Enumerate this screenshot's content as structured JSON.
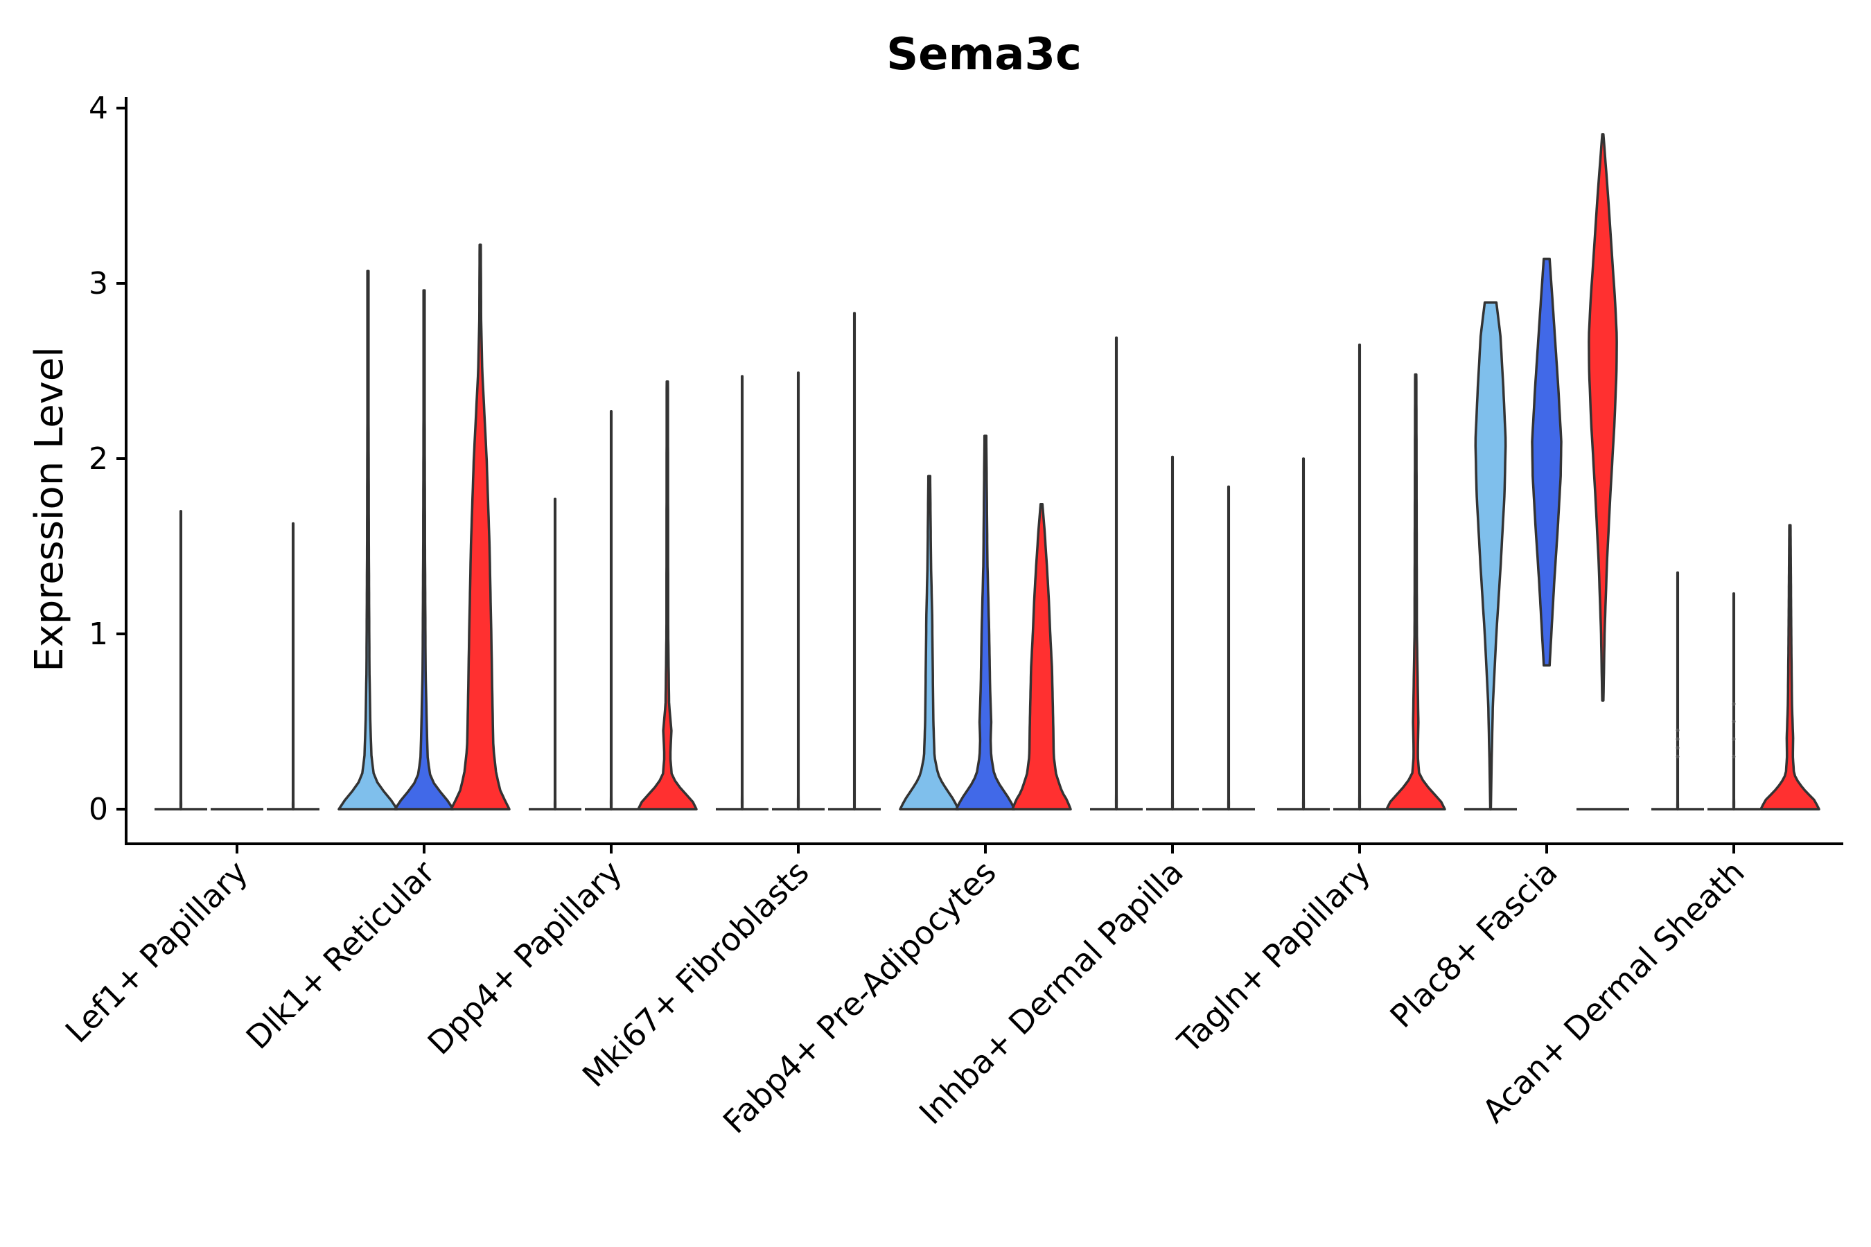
{
  "chart_data": {
    "type": "violin",
    "title": "Sema3c",
    "xlabel": "",
    "ylabel": "Expression Level",
    "ylim": [
      -0.2,
      4.05
    ],
    "yticks": [
      0,
      1,
      2,
      3,
      4
    ],
    "ytick_labels": [
      "0",
      "1",
      "2",
      "3",
      "4"
    ],
    "grid": false,
    "legend": "none",
    "groups": [
      "group1",
      "group2",
      "group3"
    ],
    "group_colors": [
      "#7FBFEC",
      "#4169E8",
      "#FF3030"
    ],
    "categories": [
      "Lef1+ Papillary",
      "Dlk1+ Reticular",
      "Dpp4+ Papillary",
      "Mki67+ Fibroblasts",
      "Fabp4+ Pre-Adipocytes",
      "Inhba+ Dermal Papilla",
      "Tagln+ Papillary",
      "Plac8+ Fascia",
      "Acan+ Dermal Sheath"
    ],
    "violins": [
      [
        {
          "group": 0,
          "max": 1.7,
          "profile": [
            [
              0,
              0.006
            ],
            [
              0.02,
              0.01
            ],
            [
              0.05,
              0.008
            ],
            [
              0.3,
              0.007
            ],
            [
              1.7,
              0.006
            ]
          ]
        },
        {
          "group": 1,
          "max": 0.0,
          "profile": [
            [
              0,
              0.0
            ]
          ]
        },
        {
          "group": 2,
          "max": 1.63,
          "profile": [
            [
              0,
              0.006
            ],
            [
              0.02,
              0.01
            ],
            [
              0.05,
              0.008
            ],
            [
              0.3,
              0.007
            ],
            [
              1.63,
              0.006
            ]
          ]
        }
      ],
      [
        {
          "group": 0,
          "max": 3.07,
          "profile": [
            [
              0,
              1.0
            ],
            [
              0.05,
              0.8
            ],
            [
              0.1,
              0.55
            ],
            [
              0.15,
              0.33
            ],
            [
              0.2,
              0.2
            ],
            [
              0.3,
              0.12
            ],
            [
              0.5,
              0.08
            ],
            [
              0.8,
              0.05
            ],
            [
              1.5,
              0.03
            ],
            [
              2.2,
              0.02
            ],
            [
              3.07,
              0.02
            ]
          ]
        },
        {
          "group": 1,
          "max": 2.96,
          "profile": [
            [
              0,
              1.0
            ],
            [
              0.05,
              0.8
            ],
            [
              0.1,
              0.55
            ],
            [
              0.15,
              0.33
            ],
            [
              0.2,
              0.2
            ],
            [
              0.3,
              0.12
            ],
            [
              0.5,
              0.09
            ],
            [
              0.8,
              0.05
            ],
            [
              1.5,
              0.03
            ],
            [
              2.2,
              0.02
            ],
            [
              2.96,
              0.02
            ]
          ]
        },
        {
          "group": 2,
          "max": 3.22,
          "profile": [
            [
              0,
              1.0
            ],
            [
              0.05,
              0.85
            ],
            [
              0.1,
              0.7
            ],
            [
              0.2,
              0.55
            ],
            [
              0.35,
              0.45
            ],
            [
              0.6,
              0.42
            ],
            [
              1.0,
              0.38
            ],
            [
              1.5,
              0.32
            ],
            [
              2.0,
              0.22
            ],
            [
              2.5,
              0.07
            ],
            [
              2.8,
              0.03
            ],
            [
              3.22,
              0.02
            ]
          ]
        }
      ],
      [
        {
          "group": 0,
          "max": 1.77,
          "profile": [
            [
              0,
              0.006
            ],
            [
              0.02,
              0.01
            ],
            [
              0.05,
              0.008
            ],
            [
              0.3,
              0.007
            ],
            [
              1.77,
              0.006
            ]
          ]
        },
        {
          "group": 1,
          "max": 2.27,
          "profile": [
            [
              0,
              0.006
            ],
            [
              0.02,
              0.01
            ],
            [
              0.05,
              0.008
            ],
            [
              0.3,
              0.007
            ],
            [
              2.27,
              0.006
            ]
          ]
        },
        {
          "group": 2,
          "max": 2.44,
          "profile": [
            [
              0,
              1.0
            ],
            [
              0.05,
              0.85
            ],
            [
              0.1,
              0.55
            ],
            [
              0.15,
              0.3
            ],
            [
              0.2,
              0.15
            ],
            [
              0.3,
              0.1
            ],
            [
              0.45,
              0.14
            ],
            [
              0.6,
              0.06
            ],
            [
              1.0,
              0.03
            ],
            [
              2.44,
              0.02
            ]
          ]
        }
      ],
      [
        {
          "group": 0,
          "max": 2.47,
          "profile": [
            [
              0,
              0.006
            ],
            [
              0.02,
              0.01
            ],
            [
              0.05,
              0.008
            ],
            [
              0.3,
              0.007
            ],
            [
              2.47,
              0.006
            ]
          ]
        },
        {
          "group": 1,
          "max": 2.49,
          "profile": [
            [
              0,
              0.006
            ],
            [
              0.02,
              0.01
            ],
            [
              0.05,
              0.008
            ],
            [
              0.3,
              0.007
            ],
            [
              2.49,
              0.006
            ]
          ]
        },
        {
          "group": 2,
          "max": 2.83,
          "profile": [
            [
              0,
              0.006
            ],
            [
              0.02,
              0.01
            ],
            [
              0.05,
              0.008
            ],
            [
              0.3,
              0.007
            ],
            [
              2.83,
              0.006
            ]
          ]
        }
      ],
      [
        {
          "group": 0,
          "max": 1.9,
          "profile": [
            [
              0,
              1.0
            ],
            [
              0.05,
              0.85
            ],
            [
              0.1,
              0.65
            ],
            [
              0.15,
              0.45
            ],
            [
              0.2,
              0.3
            ],
            [
              0.3,
              0.18
            ],
            [
              0.5,
              0.14
            ],
            [
              0.8,
              0.12
            ],
            [
              1.1,
              0.1
            ],
            [
              1.4,
              0.06
            ],
            [
              1.9,
              0.03
            ]
          ]
        },
        {
          "group": 1,
          "max": 2.13,
          "profile": [
            [
              0,
              1.0
            ],
            [
              0.05,
              0.85
            ],
            [
              0.1,
              0.65
            ],
            [
              0.15,
              0.45
            ],
            [
              0.2,
              0.3
            ],
            [
              0.3,
              0.2
            ],
            [
              0.4,
              0.18
            ],
            [
              0.5,
              0.2
            ],
            [
              0.7,
              0.16
            ],
            [
              1.0,
              0.13
            ],
            [
              1.4,
              0.07
            ],
            [
              2.13,
              0.03
            ]
          ]
        },
        {
          "group": 2,
          "max": 1.74,
          "profile": [
            [
              0,
              1.0
            ],
            [
              0.05,
              0.88
            ],
            [
              0.1,
              0.7
            ],
            [
              0.2,
              0.5
            ],
            [
              0.3,
              0.42
            ],
            [
              0.5,
              0.4
            ],
            [
              0.8,
              0.36
            ],
            [
              1.0,
              0.3
            ],
            [
              1.2,
              0.25
            ],
            [
              1.4,
              0.18
            ],
            [
              1.6,
              0.1
            ],
            [
              1.74,
              0.03
            ]
          ]
        }
      ],
      [
        {
          "group": 0,
          "max": 2.69,
          "profile": [
            [
              0,
              0.006
            ],
            [
              0.02,
              0.01
            ],
            [
              0.05,
              0.008
            ],
            [
              0.3,
              0.007
            ],
            [
              2.69,
              0.006
            ]
          ]
        },
        {
          "group": 1,
          "max": 2.01,
          "profile": [
            [
              0,
              0.006
            ],
            [
              0.02,
              0.01
            ],
            [
              0.05,
              0.008
            ],
            [
              0.3,
              0.007
            ],
            [
              2.01,
              0.006
            ]
          ]
        },
        {
          "group": 2,
          "max": 1.84,
          "profile": [
            [
              0,
              0.006
            ],
            [
              0.02,
              0.01
            ],
            [
              0.05,
              0.008
            ],
            [
              0.3,
              0.007
            ],
            [
              1.84,
              0.006
            ]
          ]
        }
      ],
      [
        {
          "group": 0,
          "max": 2.0,
          "profile": [
            [
              0,
              0.006
            ],
            [
              0.02,
              0.01
            ],
            [
              0.05,
              0.008
            ],
            [
              0.3,
              0.007
            ],
            [
              2.0,
              0.006
            ]
          ]
        },
        {
          "group": 1,
          "max": 2.65,
          "profile": [
            [
              0,
              0.006
            ],
            [
              0.02,
              0.01
            ],
            [
              0.05,
              0.008
            ],
            [
              0.3,
              0.007
            ],
            [
              2.65,
              0.006
            ]
          ]
        },
        {
          "group": 2,
          "max": 2.48,
          "profile": [
            [
              0,
              1.0
            ],
            [
              0.05,
              0.85
            ],
            [
              0.1,
              0.55
            ],
            [
              0.15,
              0.3
            ],
            [
              0.2,
              0.12
            ],
            [
              0.3,
              0.07
            ],
            [
              0.5,
              0.09
            ],
            [
              0.7,
              0.07
            ],
            [
              1.0,
              0.04
            ],
            [
              2.48,
              0.02
            ]
          ]
        }
      ],
      [
        {
          "group": 0,
          "min": 0.0,
          "max": 2.89,
          "profile": [
            [
              0,
              0.01
            ],
            [
              0.3,
              0.04
            ],
            [
              0.6,
              0.08
            ],
            [
              1.0,
              0.2
            ],
            [
              1.4,
              0.35
            ],
            [
              1.8,
              0.48
            ],
            [
              2.1,
              0.52
            ],
            [
              2.4,
              0.44
            ],
            [
              2.7,
              0.34
            ],
            [
              2.89,
              0.2
            ]
          ]
        },
        {
          "group": 1,
          "min": 0.82,
          "max": 3.14,
          "profile": [
            [
              0.82,
              0.1
            ],
            [
              1.0,
              0.16
            ],
            [
              1.3,
              0.26
            ],
            [
              1.6,
              0.38
            ],
            [
              1.9,
              0.48
            ],
            [
              2.1,
              0.5
            ],
            [
              2.4,
              0.4
            ],
            [
              2.7,
              0.28
            ],
            [
              2.9,
              0.2
            ],
            [
              3.14,
              0.1
            ]
          ]
        },
        {
          "group": 2,
          "min": 0.62,
          "max": 3.85,
          "profile": [
            [
              0.62,
              0.02
            ],
            [
              1.0,
              0.06
            ],
            [
              1.4,
              0.14
            ],
            [
              1.8,
              0.26
            ],
            [
              2.2,
              0.4
            ],
            [
              2.5,
              0.47
            ],
            [
              2.7,
              0.48
            ],
            [
              2.9,
              0.42
            ],
            [
              3.2,
              0.3
            ],
            [
              3.5,
              0.18
            ],
            [
              3.85,
              0.02
            ]
          ]
        }
      ],
      [
        {
          "group": 0,
          "max": 1.35,
          "outliers": [
            0.3,
            0.35,
            0.4,
            0.45
          ],
          "profile": [
            [
              0,
              0.006
            ],
            [
              0.02,
              0.01
            ],
            [
              0.05,
              0.008
            ],
            [
              0.3,
              0.007
            ],
            [
              1.35,
              0.006
            ]
          ]
        },
        {
          "group": 1,
          "max": 1.23,
          "outliers": [
            0.3,
            0.4,
            0.5,
            0.6
          ],
          "profile": [
            [
              0,
              0.006
            ],
            [
              0.02,
              0.01
            ],
            [
              0.05,
              0.008
            ],
            [
              0.3,
              0.007
            ],
            [
              1.23,
              0.006
            ]
          ]
        },
        {
          "group": 2,
          "max": 1.62,
          "profile": [
            [
              0,
              1.0
            ],
            [
              0.05,
              0.85
            ],
            [
              0.1,
              0.55
            ],
            [
              0.15,
              0.3
            ],
            [
              0.2,
              0.14
            ],
            [
              0.3,
              0.1
            ],
            [
              0.4,
              0.11
            ],
            [
              0.6,
              0.07
            ],
            [
              0.9,
              0.05
            ],
            [
              1.62,
              0.02
            ]
          ]
        }
      ]
    ]
  }
}
